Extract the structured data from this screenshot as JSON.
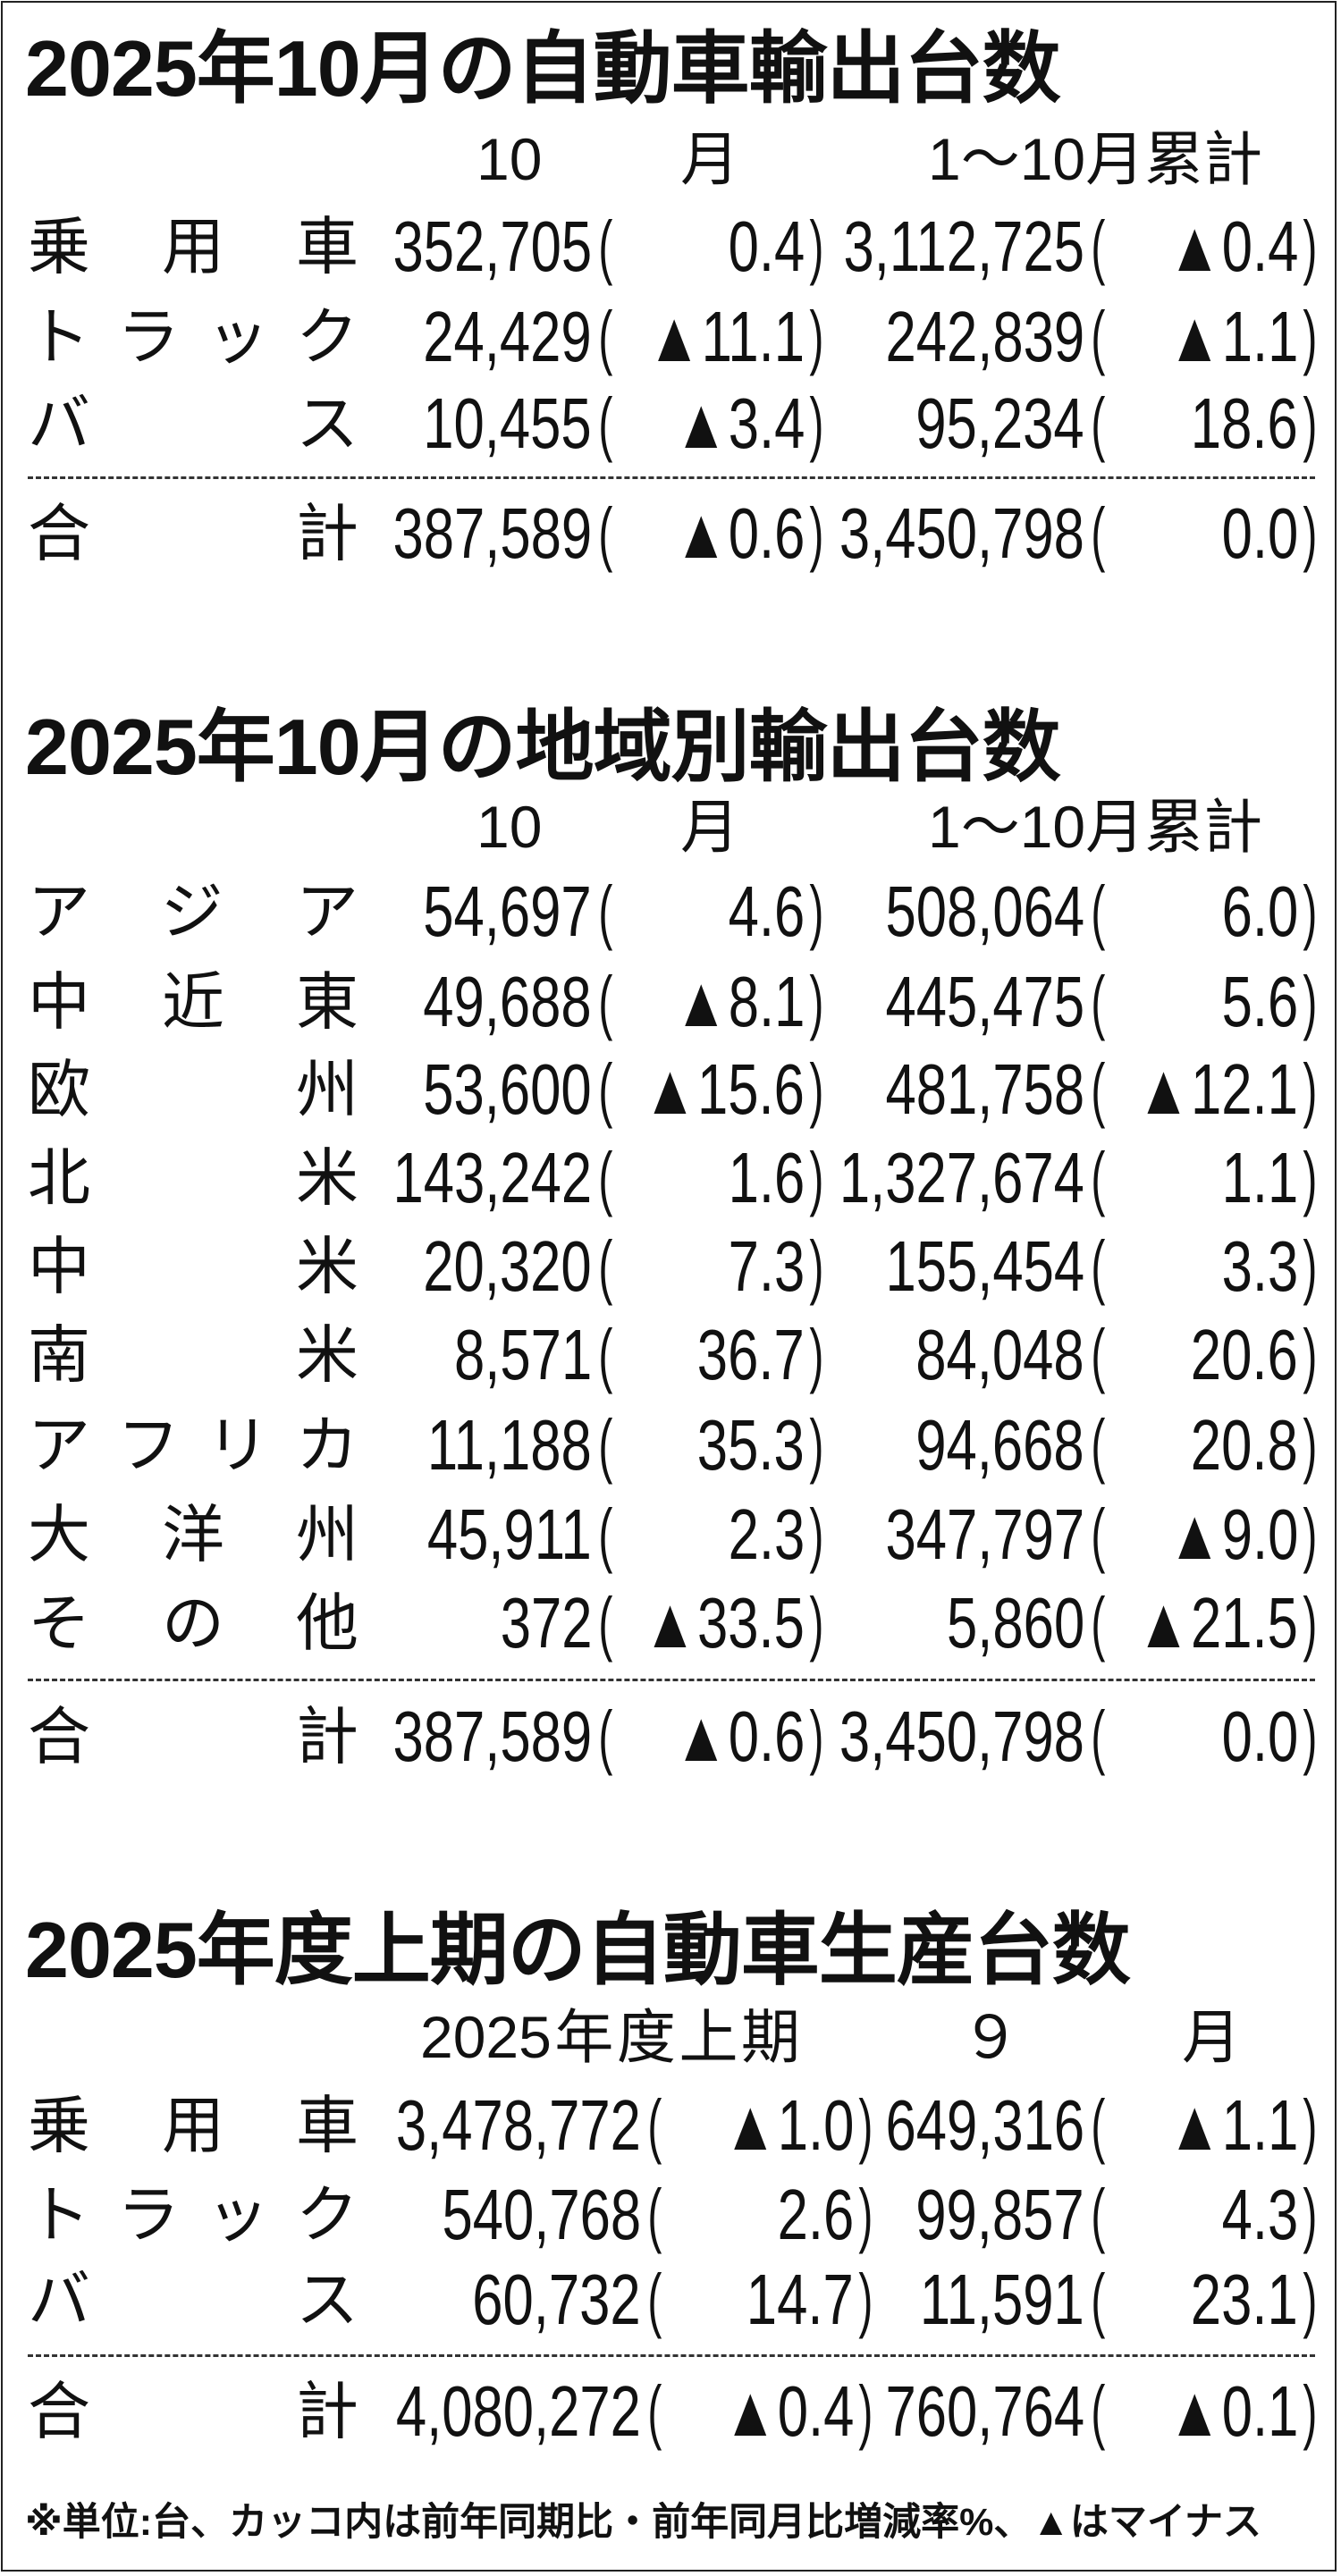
{
  "sections": [
    {
      "title": "2025年10月の自動車輸出台数",
      "headers": [
        "10　月",
        "1～10月累計"
      ],
      "rows": [
        {
          "label": "乗用車",
          "v1": "352,705",
          "p1": "0.4",
          "v2": "3,112,725",
          "p2": "▲0.4"
        },
        {
          "label": "トラック",
          "v1": "24,429",
          "p1": "▲11.1",
          "v2": "242,839",
          "p2": "▲1.1"
        },
        {
          "label": "バス",
          "v1": "10,455",
          "p1": "▲3.4",
          "v2": "95,234",
          "p2": "18.6"
        }
      ],
      "total": {
        "label": "合計",
        "v1": "387,589",
        "p1": "▲0.6",
        "v2": "3,450,798",
        "p2": "0.0"
      }
    },
    {
      "title": "2025年10月の地域別輸出台数",
      "headers": [
        "10　月",
        "1～10月累計"
      ],
      "rows": [
        {
          "label": "アジア",
          "v1": "54,697",
          "p1": "4.6",
          "v2": "508,064",
          "p2": "6.0"
        },
        {
          "label": "中近東",
          "v1": "49,688",
          "p1": "▲8.1",
          "v2": "445,475",
          "p2": "5.6"
        },
        {
          "label": "欧州",
          "v1": "53,600",
          "p1": "▲15.6",
          "v2": "481,758",
          "p2": "▲12.1"
        },
        {
          "label": "北米",
          "v1": "143,242",
          "p1": "1.6",
          "v2": "1,327,674",
          "p2": "1.1"
        },
        {
          "label": "中米",
          "v1": "20,320",
          "p1": "7.3",
          "v2": "155,454",
          "p2": "3.3"
        },
        {
          "label": "南米",
          "v1": "8,571",
          "p1": "36.7",
          "v2": "84,048",
          "p2": "20.6"
        },
        {
          "label": "アフリカ",
          "v1": "11,188",
          "p1": "35.3",
          "v2": "94,668",
          "p2": "20.8"
        },
        {
          "label": "大洋州",
          "v1": "45,911",
          "p1": "2.3",
          "v2": "347,797",
          "p2": "▲9.0"
        },
        {
          "label": "その他",
          "v1": "372",
          "p1": "▲33.5",
          "v2": "5,860",
          "p2": "▲21.5"
        }
      ],
      "total": {
        "label": "合計",
        "v1": "387,589",
        "p1": "▲0.6",
        "v2": "3,450,798",
        "p2": "0.0"
      }
    },
    {
      "title": "2025年度上期の自動車生産台数",
      "headers": [
        "2025年度上期",
        "９　月"
      ],
      "rows": [
        {
          "label": "乗用車",
          "v1": "3,478,772",
          "p1": "▲1.0",
          "v2": "649,316",
          "p2": "▲1.1"
        },
        {
          "label": "トラック",
          "v1": "540,768",
          "p1": "2.6",
          "v2": "99,857",
          "p2": "4.3"
        },
        {
          "label": "バス",
          "v1": "60,732",
          "p1": "14.7",
          "v2": "11,591",
          "p2": "23.1"
        }
      ],
      "total": {
        "label": "合計",
        "v1": "4,080,272",
        "p1": "▲0.4",
        "v2": "760,764",
        "p2": "▲0.1"
      }
    }
  ],
  "note": "※単位:台、カッコ内は前年同期比・前年同月比増減率%、▲はマイナス"
}
